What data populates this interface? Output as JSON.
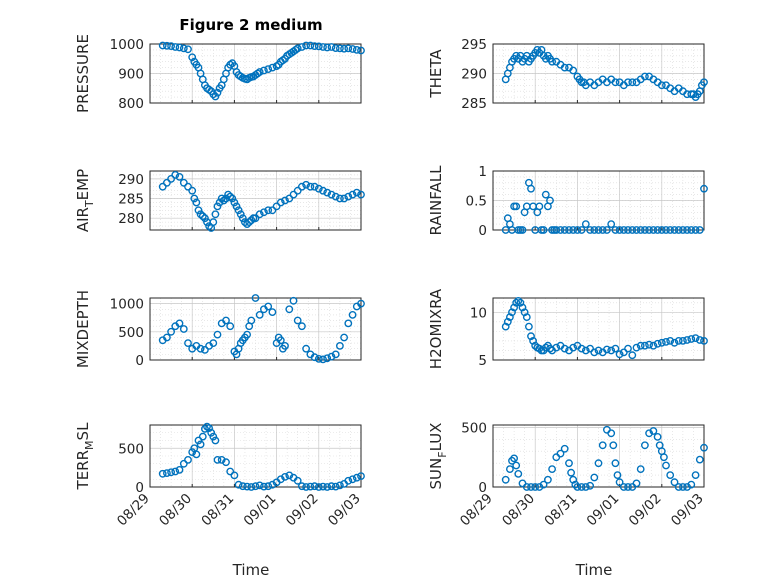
{
  "chart_data": {
    "type": "scatter",
    "title": "Figure 2 medium",
    "xlabel": "Time",
    "x_ticks": [
      "08/29",
      "08/30",
      "08/31",
      "09/01",
      "09/02",
      "09/03"
    ],
    "xlim": [
      "08/29",
      "09/03"
    ],
    "marker": "circle-open",
    "colors": {
      "marker": "#0072BD",
      "axes": "#262626",
      "grid": "#c8c8c8"
    },
    "grid": true,
    "panels": [
      {
        "id": "pressure",
        "ylabel": "PRESSURE",
        "ylim": [
          800,
          1000
        ],
        "yticks": [
          800,
          900,
          1000
        ],
        "x": [
          0.3,
          0.4,
          0.5,
          0.6,
          0.7,
          0.8,
          0.9,
          1.0,
          1.05,
          1.1,
          1.15,
          1.2,
          1.25,
          1.3,
          1.35,
          1.4,
          1.45,
          1.5,
          1.55,
          1.6,
          1.65,
          1.7,
          1.75,
          1.8,
          1.85,
          1.9,
          1.95,
          2.0,
          2.05,
          2.1,
          2.15,
          2.2,
          2.25,
          2.3,
          2.35,
          2.4,
          2.45,
          2.5,
          2.55,
          2.6,
          2.7,
          2.8,
          2.9,
          3.0,
          3.05,
          3.1,
          3.15,
          3.2,
          3.25,
          3.3,
          3.35,
          3.4,
          3.45,
          3.5,
          3.6,
          3.7,
          3.8,
          3.9,
          4.0,
          4.1,
          4.2,
          4.3,
          4.4,
          4.5,
          4.6,
          4.7,
          4.8,
          4.9,
          5.0
        ],
        "y": [
          995,
          994,
          993,
          990,
          988,
          985,
          982,
          955,
          940,
          930,
          920,
          900,
          880,
          860,
          850,
          845,
          840,
          830,
          822,
          835,
          850,
          860,
          880,
          900,
          920,
          930,
          935,
          925,
          905,
          895,
          890,
          885,
          882,
          880,
          885,
          888,
          890,
          895,
          900,
          905,
          910,
          915,
          920,
          925,
          930,
          940,
          945,
          950,
          960,
          965,
          970,
          975,
          980,
          985,
          990,
          995,
          995,
          993,
          992,
          990,
          988,
          990,
          986,
          985,
          984,
          985,
          983,
          980,
          978
        ]
      },
      {
        "id": "theta",
        "ylabel": "THETA",
        "ylim": [
          285,
          295
        ],
        "yticks": [
          285,
          290,
          295
        ],
        "x": [
          0.3,
          0.35,
          0.4,
          0.45,
          0.5,
          0.55,
          0.6,
          0.65,
          0.7,
          0.75,
          0.8,
          0.85,
          0.9,
          0.95,
          1.0,
          1.05,
          1.1,
          1.15,
          1.2,
          1.25,
          1.3,
          1.35,
          1.4,
          1.5,
          1.6,
          1.7,
          1.8,
          1.9,
          2.0,
          2.05,
          2.1,
          2.15,
          2.2,
          2.3,
          2.4,
          2.5,
          2.6,
          2.7,
          2.8,
          2.9,
          3.0,
          3.1,
          3.2,
          3.3,
          3.4,
          3.5,
          3.6,
          3.7,
          3.8,
          3.9,
          4.0,
          4.1,
          4.2,
          4.3,
          4.4,
          4.5,
          4.6,
          4.7,
          4.75,
          4.8,
          4.85,
          4.9,
          4.95,
          5.0
        ],
        "y": [
          289,
          290,
          291,
          292,
          292.5,
          293,
          292.5,
          293,
          292,
          292.5,
          293,
          292,
          292.5,
          293,
          293.5,
          294,
          293.5,
          294,
          293,
          292.5,
          293,
          292.5,
          292,
          292,
          291.5,
          291,
          291,
          290.5,
          289.5,
          289,
          288.5,
          288.5,
          288,
          288.5,
          288,
          288.5,
          289,
          288.5,
          289,
          288.5,
          288.5,
          288,
          288.5,
          288.5,
          288.5,
          289,
          289.5,
          289.5,
          289,
          288.5,
          288,
          288,
          287.5,
          287,
          287.5,
          287,
          286.5,
          286.5,
          286.5,
          286,
          286.5,
          287,
          288,
          288.5
        ]
      },
      {
        "id": "air_temp",
        "ylabel": "AIR_TEMP",
        "ylim": [
          277,
          292
        ],
        "yticks": [
          280,
          285,
          290
        ],
        "x": [
          0.3,
          0.4,
          0.5,
          0.6,
          0.7,
          0.8,
          0.9,
          1.0,
          1.05,
          1.1,
          1.15,
          1.2,
          1.25,
          1.3,
          1.35,
          1.4,
          1.45,
          1.5,
          1.55,
          1.6,
          1.65,
          1.7,
          1.75,
          1.8,
          1.85,
          1.9,
          1.95,
          2.0,
          2.05,
          2.1,
          2.15,
          2.2,
          2.25,
          2.3,
          2.35,
          2.4,
          2.45,
          2.5,
          2.6,
          2.7,
          2.8,
          2.9,
          3.0,
          3.1,
          3.2,
          3.3,
          3.4,
          3.5,
          3.6,
          3.7,
          3.8,
          3.9,
          4.0,
          4.1,
          4.2,
          4.3,
          4.4,
          4.5,
          4.6,
          4.7,
          4.8,
          4.9,
          5.0
        ],
        "y": [
          288,
          289,
          290,
          291,
          290.5,
          289,
          288,
          287,
          285,
          284,
          282,
          281,
          280.5,
          280,
          279,
          278,
          277.5,
          279,
          281,
          283,
          284,
          285,
          284.5,
          285,
          286,
          285.5,
          285,
          284,
          283,
          282,
          281,
          280,
          279,
          278.5,
          279,
          279.5,
          280,
          280,
          281,
          281.5,
          282,
          282,
          283,
          284,
          284.5,
          285,
          286,
          287,
          288,
          288.5,
          288,
          288,
          287.5,
          287,
          286.5,
          286,
          285.5,
          285,
          285,
          285.5,
          286,
          286.5,
          286
        ]
      },
      {
        "id": "rainfall",
        "ylabel": "RAINFALL",
        "ylim": [
          0,
          1
        ],
        "yticks": [
          0,
          0.5,
          1
        ],
        "x": [
          0.3,
          0.35,
          0.4,
          0.45,
          0.5,
          0.55,
          0.6,
          0.65,
          0.7,
          0.75,
          0.8,
          0.85,
          0.9,
          0.95,
          1.0,
          1.05,
          1.1,
          1.15,
          1.2,
          1.25,
          1.3,
          1.35,
          1.4,
          1.45,
          1.5,
          1.6,
          1.7,
          1.8,
          1.9,
          2.0,
          2.1,
          2.2,
          2.3,
          2.4,
          2.5,
          2.6,
          2.7,
          2.8,
          2.9,
          3.0,
          3.1,
          3.2,
          3.3,
          3.4,
          3.5,
          3.6,
          3.7,
          3.8,
          3.9,
          4.0,
          4.1,
          4.2,
          4.3,
          4.4,
          4.5,
          4.6,
          4.7,
          4.8,
          4.9,
          5.0
        ],
        "y": [
          0,
          0.2,
          0.1,
          0,
          0.4,
          0.4,
          0,
          0,
          0,
          0.3,
          0.4,
          0.8,
          0.7,
          0.4,
          0,
          0.3,
          0.4,
          0,
          0,
          0.6,
          0.4,
          0.5,
          0,
          0,
          0,
          0,
          0,
          0,
          0,
          0,
          0,
          0.1,
          0,
          0,
          0,
          0,
          0,
          0.1,
          0,
          0,
          0,
          0,
          0,
          0,
          0,
          0,
          0,
          0,
          0,
          0,
          0,
          0,
          0,
          0,
          0,
          0,
          0,
          0,
          0,
          0.7
        ]
      },
      {
        "id": "mixdepth",
        "ylabel": "MIXDEPTH",
        "ylim": [
          0,
          1100
        ],
        "yticks": [
          0,
          500,
          1000
        ],
        "x": [
          0.3,
          0.4,
          0.5,
          0.6,
          0.7,
          0.8,
          0.9,
          1.0,
          1.1,
          1.2,
          1.3,
          1.4,
          1.5,
          1.6,
          1.7,
          1.8,
          1.9,
          2.0,
          2.05,
          2.1,
          2.15,
          2.2,
          2.25,
          2.3,
          2.35,
          2.4,
          2.5,
          2.6,
          2.7,
          2.8,
          2.9,
          3.0,
          3.05,
          3.1,
          3.15,
          3.2,
          3.3,
          3.4,
          3.5,
          3.6,
          3.7,
          3.8,
          3.9,
          4.0,
          4.1,
          4.2,
          4.3,
          4.4,
          4.5,
          4.6,
          4.7,
          4.8,
          4.9,
          5.0
        ],
        "y": [
          350,
          400,
          500,
          600,
          650,
          550,
          300,
          200,
          250,
          200,
          180,
          250,
          300,
          450,
          650,
          700,
          600,
          150,
          100,
          200,
          300,
          350,
          400,
          450,
          600,
          700,
          1100,
          800,
          900,
          950,
          850,
          300,
          400,
          350,
          200,
          250,
          900,
          1050,
          700,
          600,
          200,
          100,
          50,
          20,
          10,
          30,
          60,
          100,
          250,
          400,
          650,
          800,
          950,
          1000
        ]
      },
      {
        "id": "h2omixra",
        "ylabel": "H2OMIXRA",
        "ylim": [
          5,
          11.5
        ],
        "yticks": [
          5,
          10
        ],
        "x": [
          0.3,
          0.35,
          0.4,
          0.45,
          0.5,
          0.55,
          0.6,
          0.65,
          0.7,
          0.75,
          0.8,
          0.85,
          0.9,
          0.95,
          1.0,
          1.05,
          1.1,
          1.15,
          1.2,
          1.25,
          1.3,
          1.35,
          1.4,
          1.5,
          1.6,
          1.7,
          1.8,
          1.9,
          2.0,
          2.1,
          2.2,
          2.3,
          2.4,
          2.5,
          2.6,
          2.7,
          2.8,
          2.9,
          3.0,
          3.1,
          3.2,
          3.3,
          3.4,
          3.5,
          3.6,
          3.7,
          3.8,
          3.9,
          4.0,
          4.1,
          4.2,
          4.3,
          4.4,
          4.5,
          4.6,
          4.7,
          4.8,
          4.9,
          5.0
        ],
        "y": [
          8.5,
          9,
          9.5,
          10,
          10.5,
          11,
          11.2,
          11,
          10.5,
          10,
          9.5,
          8.5,
          7.5,
          7,
          6.5,
          6.3,
          6.2,
          6,
          6,
          6.3,
          6.5,
          6.2,
          6,
          6.3,
          6.5,
          6.2,
          6,
          6.3,
          6.5,
          6.2,
          6,
          6.2,
          5.8,
          6,
          5.8,
          6.1,
          6.0,
          6.2,
          5.6,
          5.8,
          6.2,
          5.5,
          6.3,
          6.5,
          6.5,
          6.6,
          6.5,
          6.7,
          6.8,
          6.9,
          7,
          6.8,
          7,
          7,
          7.1,
          7.2,
          7.3,
          7.1,
          7
        ]
      },
      {
        "id": "terr_msl",
        "ylabel": "TERR_MSL",
        "ylim": [
          0,
          800
        ],
        "yticks": [
          0,
          500
        ],
        "x": [
          0.3,
          0.4,
          0.5,
          0.6,
          0.7,
          0.8,
          0.9,
          1.0,
          1.05,
          1.1,
          1.15,
          1.2,
          1.25,
          1.3,
          1.35,
          1.4,
          1.45,
          1.5,
          1.55,
          1.6,
          1.7,
          1.8,
          1.9,
          2.0,
          2.1,
          2.2,
          2.3,
          2.4,
          2.5,
          2.6,
          2.7,
          2.8,
          2.9,
          3.0,
          3.1,
          3.2,
          3.3,
          3.4,
          3.5,
          3.6,
          3.7,
          3.8,
          3.9,
          4.0,
          4.1,
          4.2,
          4.3,
          4.4,
          4.5,
          4.6,
          4.7,
          4.8,
          4.9,
          5.0
        ],
        "y": [
          170,
          180,
          190,
          200,
          220,
          300,
          350,
          450,
          500,
          420,
          600,
          550,
          650,
          750,
          780,
          760,
          700,
          650,
          600,
          350,
          350,
          320,
          200,
          150,
          30,
          10,
          5,
          0,
          10,
          20,
          5,
          10,
          30,
          60,
          100,
          130,
          150,
          120,
          80,
          10,
          0,
          5,
          10,
          0,
          5,
          0,
          10,
          5,
          20,
          40,
          80,
          100,
          120,
          140
        ]
      },
      {
        "id": "sun_flux",
        "ylabel": "SUN_FLUX",
        "ylim": [
          0,
          520
        ],
        "yticks": [
          0,
          500
        ],
        "x": [
          0.3,
          0.4,
          0.45,
          0.5,
          0.55,
          0.6,
          0.7,
          0.8,
          0.9,
          1.0,
          1.1,
          1.2,
          1.3,
          1.4,
          1.5,
          1.6,
          1.7,
          1.8,
          1.85,
          1.9,
          1.95,
          2.0,
          2.1,
          2.2,
          2.3,
          2.4,
          2.5,
          2.6,
          2.7,
          2.8,
          2.85,
          2.9,
          2.95,
          3.0,
          3.1,
          3.2,
          3.3,
          3.4,
          3.5,
          3.6,
          3.7,
          3.8,
          3.9,
          3.95,
          4.0,
          4.05,
          4.1,
          4.2,
          4.3,
          4.4,
          4.5,
          4.6,
          4.7,
          4.8,
          4.9,
          5.0
        ],
        "y": [
          60,
          150,
          220,
          240,
          180,
          110,
          30,
          0,
          0,
          0,
          0,
          20,
          60,
          150,
          250,
          280,
          320,
          200,
          120,
          60,
          20,
          0,
          0,
          0,
          10,
          80,
          200,
          350,
          480,
          450,
          350,
          200,
          100,
          40,
          0,
          0,
          0,
          30,
          150,
          350,
          450,
          470,
          420,
          350,
          300,
          250,
          180,
          100,
          40,
          0,
          0,
          0,
          20,
          100,
          230,
          330
        ]
      }
    ]
  }
}
